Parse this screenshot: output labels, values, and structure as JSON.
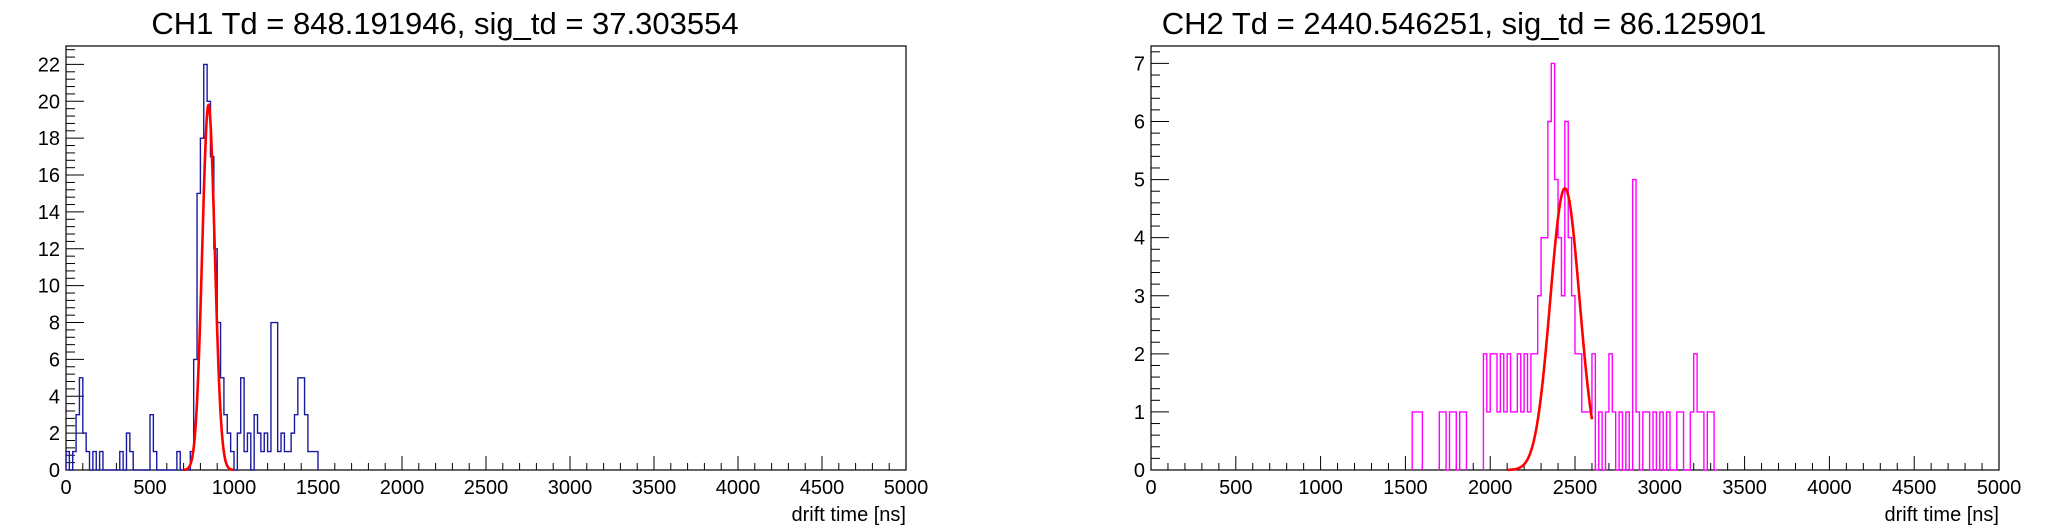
{
  "chart_data": [
    {
      "type": "histogram",
      "title": "CH1 Td = 848.191946, sig_td = 37.303554",
      "xlabel": "drift time [ns]",
      "ylabel": "",
      "xlim": [
        0,
        5000
      ],
      "ylim": [
        0,
        23
      ],
      "x_ticks": [
        "0",
        "500",
        "1000",
        "1500",
        "2000",
        "2500",
        "3000",
        "3500",
        "4000",
        "4500",
        "5000"
      ],
      "y_ticks": [
        "0",
        "2",
        "4",
        "6",
        "8",
        "10",
        "12",
        "14",
        "16",
        "18",
        "20",
        "22"
      ],
      "bin_width": 20,
      "grid": false,
      "histogram_color": "#1a1aa0",
      "fit_color": "#ff0000",
      "bins_x": [
        0,
        20,
        40,
        60,
        80,
        100,
        120,
        140,
        160,
        180,
        200,
        220,
        240,
        260,
        280,
        300,
        320,
        340,
        360,
        380,
        400,
        420,
        440,
        460,
        480,
        500,
        520,
        540,
        560,
        580,
        600,
        620,
        640,
        660,
        680,
        700,
        720,
        740,
        760,
        780,
        800,
        820,
        840,
        860,
        880,
        900,
        920,
        940,
        960,
        980,
        1000,
        1020,
        1040,
        1060,
        1080,
        1100,
        1120,
        1140,
        1160,
        1180,
        1200,
        1220,
        1240,
        1260,
        1280,
        1300,
        1320,
        1340,
        1360,
        1380,
        1400,
        1420,
        1440,
        1460,
        1480
      ],
      "bins_count": [
        1,
        0,
        1,
        3,
        5,
        2,
        1,
        0,
        1,
        0,
        1,
        0,
        0,
        0,
        0,
        0,
        1,
        0,
        2,
        1,
        0,
        0,
        0,
        0,
        0,
        3,
        1,
        0,
        0,
        0,
        0,
        0,
        0,
        1,
        0,
        0,
        0,
        1,
        6,
        15,
        18,
        22,
        20,
        17,
        12,
        8,
        5,
        3,
        2,
        1,
        0,
        2,
        5,
        1,
        2,
        0,
        3,
        2,
        1,
        2,
        1,
        8,
        8,
        1,
        2,
        1,
        1,
        2,
        3,
        5,
        5,
        3,
        1,
        1,
        1
      ],
      "fit": {
        "mean": 848.191946,
        "sigma": 37.303554,
        "amplitude": 19.8,
        "range": [
          700,
          1000
        ]
      }
    },
    {
      "type": "histogram",
      "title": "CH2 Td = 2440.546251, sig_td = 86.125901",
      "xlabel": "drift time [ns]",
      "ylabel": "",
      "xlim": [
        0,
        5000
      ],
      "ylim": [
        0,
        7.3
      ],
      "x_ticks": [
        "0",
        "500",
        "1000",
        "1500",
        "2000",
        "2500",
        "3000",
        "3500",
        "4000",
        "4500",
        "5000"
      ],
      "y_ticks": [
        "0",
        "1",
        "2",
        "3",
        "4",
        "5",
        "6",
        "7"
      ],
      "bin_width": 20,
      "grid": false,
      "histogram_color": "#ff00ff",
      "fit_color": "#ff0000",
      "bins_x": [
        1540,
        1560,
        1580,
        1700,
        1720,
        1740,
        1760,
        1780,
        1800,
        1820,
        1840,
        1960,
        1980,
        2000,
        2020,
        2040,
        2060,
        2080,
        2100,
        2120,
        2140,
        2160,
        2180,
        2200,
        2220,
        2240,
        2260,
        2280,
        2300,
        2320,
        2340,
        2360,
        2380,
        2400,
        2420,
        2440,
        2460,
        2480,
        2500,
        2520,
        2540,
        2560,
        2580,
        2600,
        2620,
        2640,
        2660,
        2680,
        2700,
        2720,
        2740,
        2760,
        2780,
        2800,
        2820,
        2840,
        2860,
        2880,
        2900,
        2920,
        2940,
        2960,
        2980,
        3000,
        3020,
        3040,
        3060,
        3080,
        3100,
        3120,
        3140,
        3160,
        3180,
        3200,
        3220,
        3240,
        3260,
        3280,
        3300,
        3320
      ],
      "bins_count": [
        1,
        1,
        1,
        1,
        1,
        0,
        1,
        1,
        0,
        1,
        1,
        2,
        1,
        2,
        2,
        1,
        2,
        1,
        2,
        1,
        1,
        2,
        1,
        2,
        1,
        2,
        2,
        3,
        4,
        4,
        6,
        7,
        5,
        4,
        3,
        6,
        4,
        3,
        2,
        2,
        1,
        1,
        1,
        2,
        0,
        1,
        0,
        1,
        2,
        1,
        0,
        1,
        0,
        1,
        0,
        5,
        1,
        0,
        1,
        1,
        0,
        1,
        0,
        1,
        0,
        1,
        0,
        0,
        1,
        1,
        0,
        0,
        1,
        2,
        1,
        1,
        0,
        1,
        1,
        0
      ],
      "fit": {
        "mean": 2440.546251,
        "sigma": 86.125901,
        "amplitude": 4.85,
        "range": [
          2100,
          2600
        ]
      }
    }
  ]
}
